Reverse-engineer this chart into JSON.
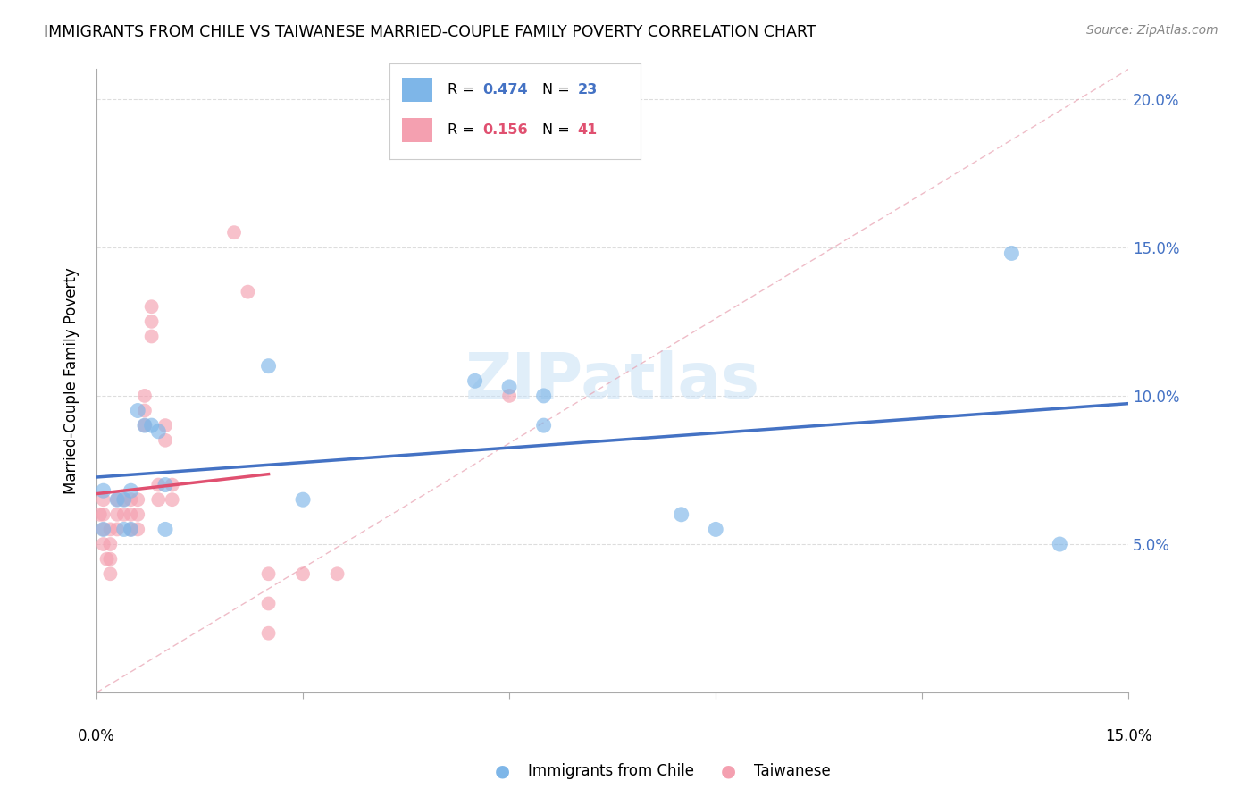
{
  "title": "IMMIGRANTS FROM CHILE VS TAIWANESE MARRIED-COUPLE FAMILY POVERTY CORRELATION CHART",
  "source": "Source: ZipAtlas.com",
  "ylabel": "Married-Couple Family Poverty",
  "legend_bottom": [
    "Immigrants from Chile",
    "Taiwanese"
  ],
  "xlim": [
    0.0,
    0.15
  ],
  "ylim": [
    0.0,
    0.21
  ],
  "xticks": [
    0.0,
    0.03,
    0.06,
    0.09,
    0.12,
    0.15
  ],
  "yticks": [
    0.0,
    0.05,
    0.1,
    0.15,
    0.2
  ],
  "ytick_right_labels": [
    "",
    "5.0%",
    "10.0%",
    "15.0%",
    "20.0%"
  ],
  "color_chile": "#7EB6E8",
  "color_taiwanese": "#F4A0B0",
  "line_color_chile": "#4472C4",
  "line_color_taiwanese": "#E05070",
  "diag_line_color": "#E8A0B0",
  "R_chile": 0.474,
  "N_chile": 23,
  "R_taiwanese": 0.156,
  "N_taiwanese": 41,
  "chile_x": [
    0.001,
    0.001,
    0.003,
    0.004,
    0.004,
    0.005,
    0.005,
    0.006,
    0.007,
    0.008,
    0.009,
    0.01,
    0.01,
    0.025,
    0.03,
    0.055,
    0.06,
    0.065,
    0.065,
    0.085,
    0.09,
    0.133,
    0.14
  ],
  "chile_y": [
    0.068,
    0.055,
    0.065,
    0.055,
    0.065,
    0.068,
    0.055,
    0.095,
    0.09,
    0.09,
    0.088,
    0.07,
    0.055,
    0.11,
    0.065,
    0.105,
    0.103,
    0.1,
    0.09,
    0.06,
    0.055,
    0.148,
    0.05
  ],
  "taiwanese_x": [
    0.0005,
    0.001,
    0.001,
    0.001,
    0.001,
    0.0015,
    0.002,
    0.002,
    0.002,
    0.002,
    0.003,
    0.003,
    0.003,
    0.004,
    0.004,
    0.005,
    0.005,
    0.005,
    0.006,
    0.006,
    0.006,
    0.007,
    0.007,
    0.007,
    0.008,
    0.008,
    0.008,
    0.009,
    0.009,
    0.01,
    0.01,
    0.011,
    0.011,
    0.02,
    0.022,
    0.025,
    0.025,
    0.025,
    0.03,
    0.035,
    0.06
  ],
  "taiwanese_y": [
    0.06,
    0.065,
    0.06,
    0.055,
    0.05,
    0.045,
    0.055,
    0.05,
    0.045,
    0.04,
    0.065,
    0.06,
    0.055,
    0.065,
    0.06,
    0.065,
    0.06,
    0.055,
    0.065,
    0.06,
    0.055,
    0.1,
    0.095,
    0.09,
    0.13,
    0.125,
    0.12,
    0.07,
    0.065,
    0.09,
    0.085,
    0.07,
    0.065,
    0.155,
    0.135,
    0.04,
    0.03,
    0.02,
    0.04,
    0.04,
    0.1
  ],
  "background_color": "#FFFFFF",
  "grid_color": "#DDDDDD",
  "watermark": "ZIPatlas",
  "reg_line_chile": [
    0.0,
    0.15,
    0.062,
    0.132
  ],
  "reg_line_taiwanese": [
    0.0,
    0.025,
    0.062,
    0.075
  ]
}
